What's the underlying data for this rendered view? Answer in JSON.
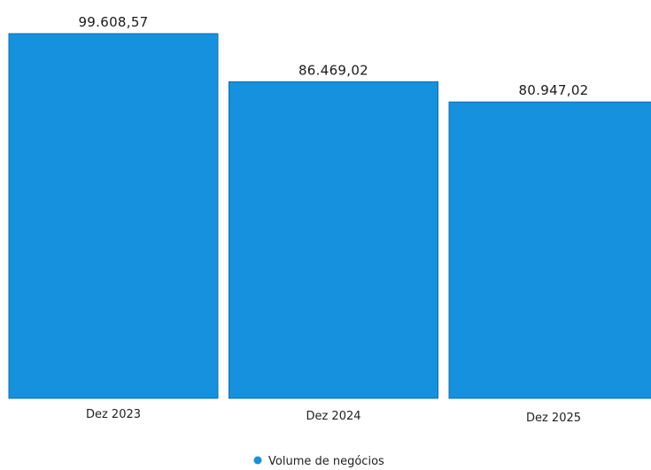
{
  "chart_data": {
    "type": "bar",
    "categories": [
      "Dez 2023",
      "Dez 2024",
      "Dez 2025"
    ],
    "series": [
      {
        "name": "Volume de negócios",
        "values": [
          99608.57,
          86469.02,
          80947.02
        ],
        "value_labels": [
          "99.608,57",
          "86.469,02",
          "80.947,02"
        ],
        "color": "#1591dd"
      }
    ],
    "title": "",
    "xlabel": "",
    "ylabel": "",
    "ylim": [
      0,
      99608.57
    ],
    "grid": false,
    "legend_position": "bottom-center"
  }
}
